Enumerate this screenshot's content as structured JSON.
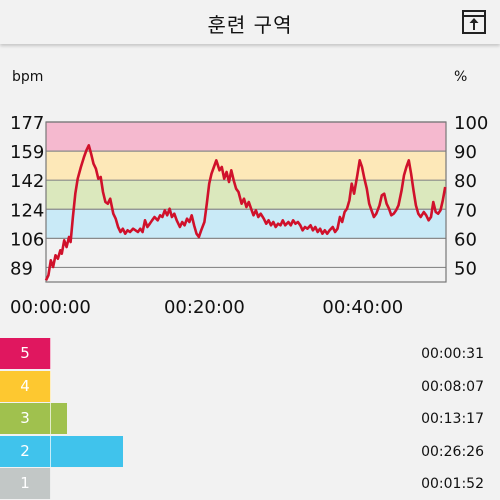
{
  "header": {
    "title": "훈련 구역",
    "export_icon": "export-icon"
  },
  "chart_data": {
    "type": "line",
    "left_unit": "bpm",
    "right_unit": "%",
    "y_left_ticks": [
      "177",
      "159",
      "142",
      "124",
      "106",
      "89"
    ],
    "y_right_ticks": [
      "100",
      "90",
      "80",
      "70",
      "60",
      "50"
    ],
    "ylim_bpm": [
      81,
      177
    ],
    "ylim_pct": [
      45,
      100
    ],
    "x_ticks": [
      "00:00:00",
      "00:20:00",
      "00:40:00"
    ],
    "x_tick_minutes": [
      0,
      20,
      40
    ],
    "xlim_minutes": [
      0,
      50.5
    ],
    "zone_bands_pct": [
      {
        "zone": 5,
        "from": 90,
        "to": 100,
        "color": "#f5b9cf"
      },
      {
        "zone": 4,
        "from": 80,
        "to": 90,
        "color": "#fde8b8"
      },
      {
        "zone": 3,
        "from": 70,
        "to": 80,
        "color": "#dbe8bd"
      },
      {
        "zone": 2,
        "from": 60,
        "to": 70,
        "color": "#c9eaf7"
      }
    ],
    "series": [
      {
        "color": "#d0112b",
        "points": [
          [
            0.0,
            82
          ],
          [
            0.3,
            85
          ],
          [
            0.6,
            94
          ],
          [
            0.9,
            90
          ],
          [
            1.2,
            97
          ],
          [
            1.5,
            95
          ],
          [
            1.8,
            100
          ],
          [
            2.0,
            98
          ],
          [
            2.3,
            106
          ],
          [
            2.6,
            102
          ],
          [
            2.9,
            108
          ],
          [
            3.1,
            105
          ],
          [
            3.4,
            120
          ],
          [
            3.7,
            134
          ],
          [
            4.0,
            143
          ],
          [
            4.4,
            150
          ],
          [
            4.8,
            156
          ],
          [
            5.1,
            160
          ],
          [
            5.4,
            163
          ],
          [
            5.7,
            158
          ],
          [
            6.0,
            152
          ],
          [
            6.3,
            149
          ],
          [
            6.6,
            143
          ],
          [
            6.9,
            144
          ],
          [
            7.2,
            135
          ],
          [
            7.5,
            129
          ],
          [
            7.8,
            128
          ],
          [
            8.1,
            131
          ],
          [
            8.5,
            122
          ],
          [
            8.8,
            119
          ],
          [
            9.1,
            114
          ],
          [
            9.4,
            111
          ],
          [
            9.7,
            113
          ],
          [
            10.0,
            110
          ],
          [
            10.3,
            112
          ],
          [
            10.6,
            111
          ],
          [
            11.0,
            113
          ],
          [
            11.3,
            112
          ],
          [
            11.6,
            111
          ],
          [
            11.9,
            113
          ],
          [
            12.2,
            111
          ],
          [
            12.5,
            118
          ],
          [
            12.8,
            114
          ],
          [
            13.1,
            116
          ],
          [
            13.4,
            118
          ],
          [
            13.7,
            120
          ],
          [
            14.1,
            118
          ],
          [
            14.4,
            121
          ],
          [
            14.7,
            120
          ],
          [
            15.0,
            124
          ],
          [
            15.3,
            121
          ],
          [
            15.6,
            125
          ],
          [
            15.9,
            120
          ],
          [
            16.2,
            122
          ],
          [
            16.5,
            118
          ],
          [
            16.9,
            114
          ],
          [
            17.2,
            117
          ],
          [
            17.5,
            115
          ],
          [
            17.8,
            119
          ],
          [
            18.1,
            117
          ],
          [
            18.4,
            121
          ],
          [
            18.7,
            115
          ],
          [
            19.0,
            110
          ],
          [
            19.3,
            108
          ],
          [
            19.6,
            112
          ],
          [
            20.0,
            117
          ],
          [
            20.3,
            128
          ],
          [
            20.6,
            140
          ],
          [
            20.9,
            146
          ],
          [
            21.2,
            150
          ],
          [
            21.5,
            154
          ],
          [
            21.9,
            148
          ],
          [
            22.2,
            150
          ],
          [
            22.5,
            143
          ],
          [
            22.8,
            147
          ],
          [
            23.1,
            141
          ],
          [
            23.4,
            148
          ],
          [
            23.7,
            142
          ],
          [
            24.0,
            137
          ],
          [
            24.3,
            135
          ],
          [
            24.7,
            128
          ],
          [
            25.0,
            131
          ],
          [
            25.3,
            126
          ],
          [
            25.6,
            129
          ],
          [
            25.9,
            125
          ],
          [
            26.2,
            121
          ],
          [
            26.5,
            124
          ],
          [
            26.8,
            120
          ],
          [
            27.1,
            122
          ],
          [
            27.5,
            119
          ],
          [
            27.8,
            116
          ],
          [
            28.1,
            118
          ],
          [
            28.4,
            115
          ],
          [
            28.7,
            117
          ],
          [
            29.0,
            114
          ],
          [
            29.3,
            116
          ],
          [
            29.6,
            115
          ],
          [
            29.9,
            118
          ],
          [
            30.2,
            115
          ],
          [
            30.6,
            117
          ],
          [
            30.9,
            115
          ],
          [
            31.2,
            118
          ],
          [
            31.5,
            116
          ],
          [
            31.8,
            117
          ],
          [
            32.1,
            115
          ],
          [
            32.4,
            112
          ],
          [
            32.7,
            114
          ],
          [
            33.0,
            113
          ],
          [
            33.4,
            115
          ],
          [
            33.7,
            112
          ],
          [
            34.0,
            114
          ],
          [
            34.3,
            111
          ],
          [
            34.6,
            113
          ],
          [
            34.9,
            110
          ],
          [
            35.2,
            112
          ],
          [
            35.5,
            110
          ],
          [
            35.8,
            112
          ],
          [
            36.2,
            114
          ],
          [
            36.5,
            111
          ],
          [
            36.8,
            113
          ],
          [
            37.1,
            120
          ],
          [
            37.4,
            117
          ],
          [
            37.7,
            123
          ],
          [
            38.0,
            125
          ],
          [
            38.3,
            130
          ],
          [
            38.6,
            140
          ],
          [
            38.9,
            134
          ],
          [
            39.3,
            145
          ],
          [
            39.6,
            154
          ],
          [
            39.9,
            150
          ],
          [
            40.2,
            143
          ],
          [
            40.5,
            137
          ],
          [
            40.8,
            128
          ],
          [
            41.1,
            124
          ],
          [
            41.4,
            120
          ],
          [
            41.7,
            122
          ],
          [
            42.1,
            127
          ],
          [
            42.4,
            133
          ],
          [
            42.7,
            134
          ],
          [
            43.0,
            128
          ],
          [
            43.3,
            125
          ],
          [
            43.6,
            121
          ],
          [
            43.9,
            122
          ],
          [
            44.2,
            124
          ],
          [
            44.5,
            127
          ],
          [
            44.9,
            136
          ],
          [
            45.2,
            145
          ],
          [
            45.5,
            150
          ],
          [
            45.8,
            154
          ],
          [
            46.1,
            146
          ],
          [
            46.4,
            136
          ],
          [
            46.7,
            127
          ],
          [
            47.0,
            122
          ],
          [
            47.3,
            120
          ],
          [
            47.7,
            123
          ],
          [
            48.0,
            121
          ],
          [
            48.3,
            118
          ],
          [
            48.6,
            120
          ],
          [
            48.9,
            129
          ],
          [
            49.2,
            123
          ],
          [
            49.5,
            122
          ],
          [
            49.8,
            124
          ],
          [
            50.1,
            130
          ],
          [
            50.4,
            138
          ]
        ]
      }
    ]
  },
  "zones": [
    {
      "label": "5",
      "time": "00:00:31",
      "fraction": 0.0053,
      "color": "#e0175f"
    },
    {
      "label": "4",
      "time": "00:08:07",
      "fraction": 0.0828,
      "color": "#fdc830"
    },
    {
      "label": "3",
      "time": "00:13:17",
      "fraction": 0.1355,
      "color": "#a0c14e"
    },
    {
      "label": "2",
      "time": "00:26:26",
      "fraction": 0.2696,
      "color": "#40c3ec"
    },
    {
      "label": "1",
      "time": "00:01:52",
      "fraction": 0.019,
      "color": "#c2c7c6"
    }
  ]
}
